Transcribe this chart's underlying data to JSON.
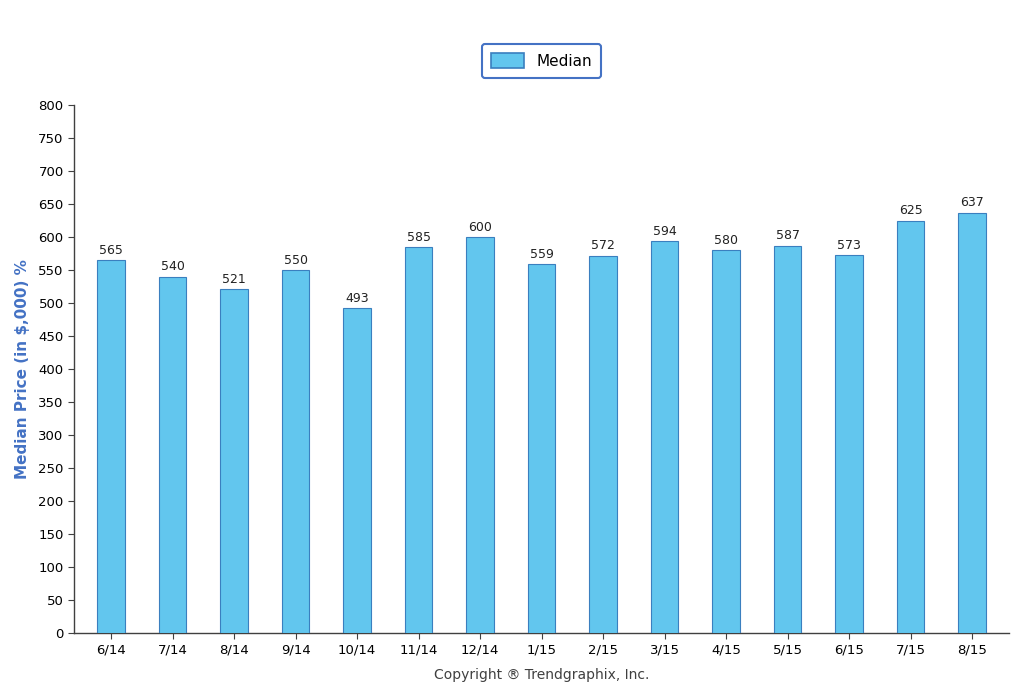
{
  "categories": [
    "6/14",
    "7/14",
    "8/14",
    "9/14",
    "10/14",
    "11/14",
    "12/14",
    "1/15",
    "2/15",
    "3/15",
    "4/15",
    "5/15",
    "6/15",
    "7/15",
    "8/15"
  ],
  "values": [
    565,
    540,
    521,
    550,
    493,
    585,
    600,
    559,
    572,
    594,
    580,
    587,
    573,
    625,
    637
  ],
  "bar_color": "#62C6EE",
  "bar_edge_color": "#3A7FBF",
  "ylabel": "Median Price (in $,000) %",
  "xlabel": "Copyright ® Trendgraphix, Inc.",
  "ylim": [
    0,
    800
  ],
  "yticks": [
    0,
    50,
    100,
    150,
    200,
    250,
    300,
    350,
    400,
    450,
    500,
    550,
    600,
    650,
    700,
    750,
    800
  ],
  "legend_label": "Median",
  "legend_facecolor": "#62C6EE",
  "legend_edgecolor": "#3A7FBF",
  "legend_border_color": "#4472C4",
  "bar_label_fontsize": 9,
  "axis_label_fontsize": 11,
  "tick_label_fontsize": 9.5,
  "ylabel_color": "#4472C4",
  "xlabel_color": "#404040",
  "background_color": "#FFFFFF"
}
